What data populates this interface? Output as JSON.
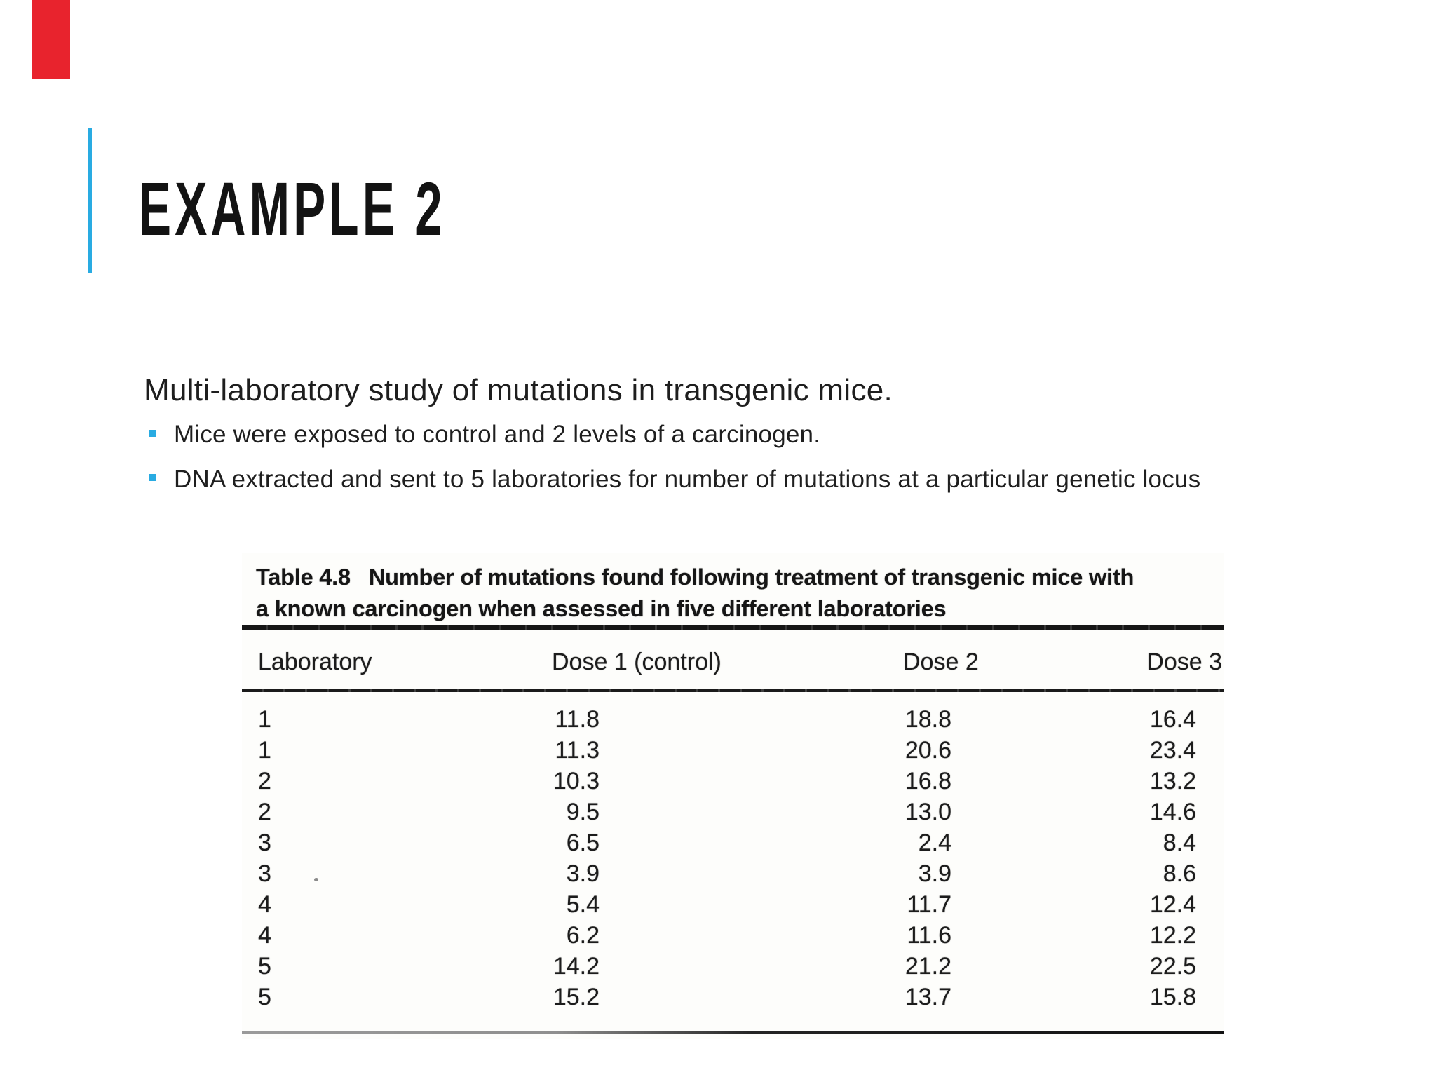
{
  "slide": {
    "title": "EXAMPLE 2",
    "accent_color": "#29abe2",
    "red_tab_color": "#e8232d",
    "heading": "Multi-laboratory study of mutations in transgenic mice.",
    "bullets": [
      "Mice were exposed to control and 2 levels of a carcinogen.",
      "DNA extracted and sent to 5 laboratories for number of mutations at a particular genetic locus"
    ],
    "table": {
      "caption": {
        "label": "Table 4.8",
        "line1_rest": "Number of mutations found following treatment of transgenic mice with",
        "line2": "a known carcinogen when assessed in five different laboratories"
      },
      "columns": [
        "Laboratory",
        "Dose 1 (control)",
        "Dose 2",
        "Dose 3"
      ],
      "rows": [
        [
          "1",
          "11.8",
          "18.8",
          "16.4"
        ],
        [
          "1",
          "11.3",
          "20.6",
          "23.4"
        ],
        [
          "2",
          "10.3",
          "16.8",
          "13.2"
        ],
        [
          "2",
          "9.5",
          "13.0",
          "14.6"
        ],
        [
          "3",
          "6.5",
          "2.4",
          "8.4"
        ],
        [
          "3",
          "3.9",
          "3.9",
          "8.6"
        ],
        [
          "4",
          "5.4",
          "11.7",
          "12.4"
        ],
        [
          "4",
          "6.2",
          "11.6",
          "12.2"
        ],
        [
          "5",
          "14.2",
          "21.2",
          "22.5"
        ],
        [
          "5",
          "15.2",
          "13.7",
          "15.8"
        ]
      ]
    }
  }
}
